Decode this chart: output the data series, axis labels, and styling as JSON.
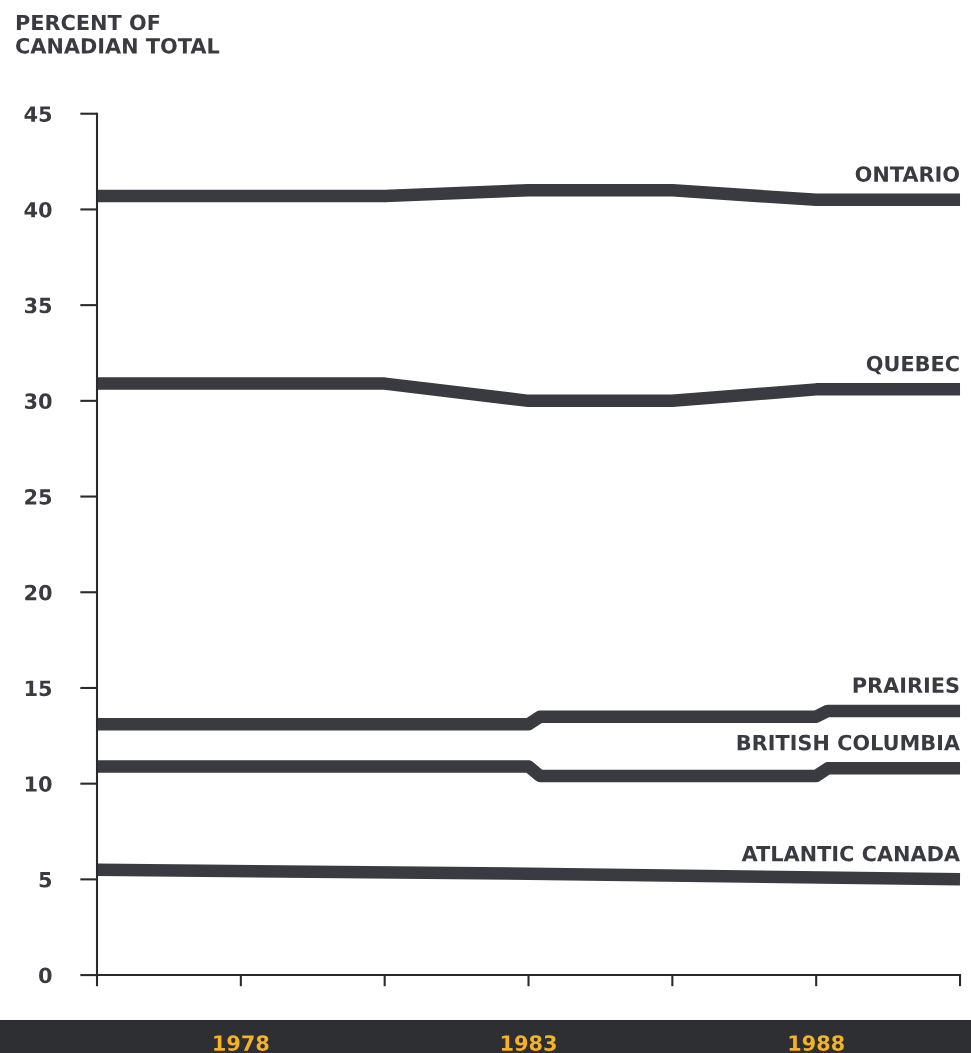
{
  "chart_data": {
    "type": "line",
    "ylabel": "PERCENT OF\nCANADIAN TOTAL",
    "xlim": [
      1975.5,
      1990.5
    ],
    "xticks": [
      {
        "value": 1975.5,
        "label": null
      },
      1978,
      {
        "value": 1980.5,
        "label": null
      },
      1983,
      {
        "value": 1985.5,
        "label": null
      },
      1988,
      {
        "value": 1990.5,
        "label": null
      }
    ],
    "ylim": [
      0,
      45
    ],
    "yticks": [
      0,
      5,
      10,
      15,
      20,
      25,
      30,
      35,
      40,
      45
    ],
    "grid": false,
    "legend": false,
    "marker": "none",
    "line_style": "solid",
    "series": [
      {
        "name": "ONTARIO",
        "color": "#3a3b40",
        "x": [
          1975.5,
          1980.5,
          1983,
          1985.5,
          1988,
          1990.5
        ],
        "values": [
          40.7,
          40.7,
          41.0,
          41.0,
          40.5,
          40.5
        ]
      },
      {
        "name": "QUEBEC",
        "color": "#3a3b40",
        "x": [
          1975.5,
          1980.5,
          1983,
          1985.5,
          1988,
          1990.5
        ],
        "values": [
          30.9,
          30.9,
          30.0,
          30.0,
          30.6,
          30.6
        ]
      },
      {
        "name": "PRAIRIES",
        "color": "#3a3b40",
        "x": [
          1975.5,
          1983,
          1983.2,
          1988,
          1988.2,
          1990.5
        ],
        "values": [
          13.1,
          13.1,
          13.5,
          13.5,
          13.8,
          13.8
        ]
      },
      {
        "name": "BRITISH COLUMBIA",
        "color": "#3a3b40",
        "x": [
          1975.5,
          1983,
          1983.2,
          1988,
          1988.2,
          1990.5
        ],
        "values": [
          10.9,
          10.9,
          10.4,
          10.4,
          10.8,
          10.8
        ]
      },
      {
        "name": "ATLANTIC CANADA",
        "color": "#3a3b40",
        "x": [
          1975.5,
          1983,
          1990.5
        ],
        "values": [
          5.5,
          5.3,
          5.0
        ]
      }
    ]
  }
}
